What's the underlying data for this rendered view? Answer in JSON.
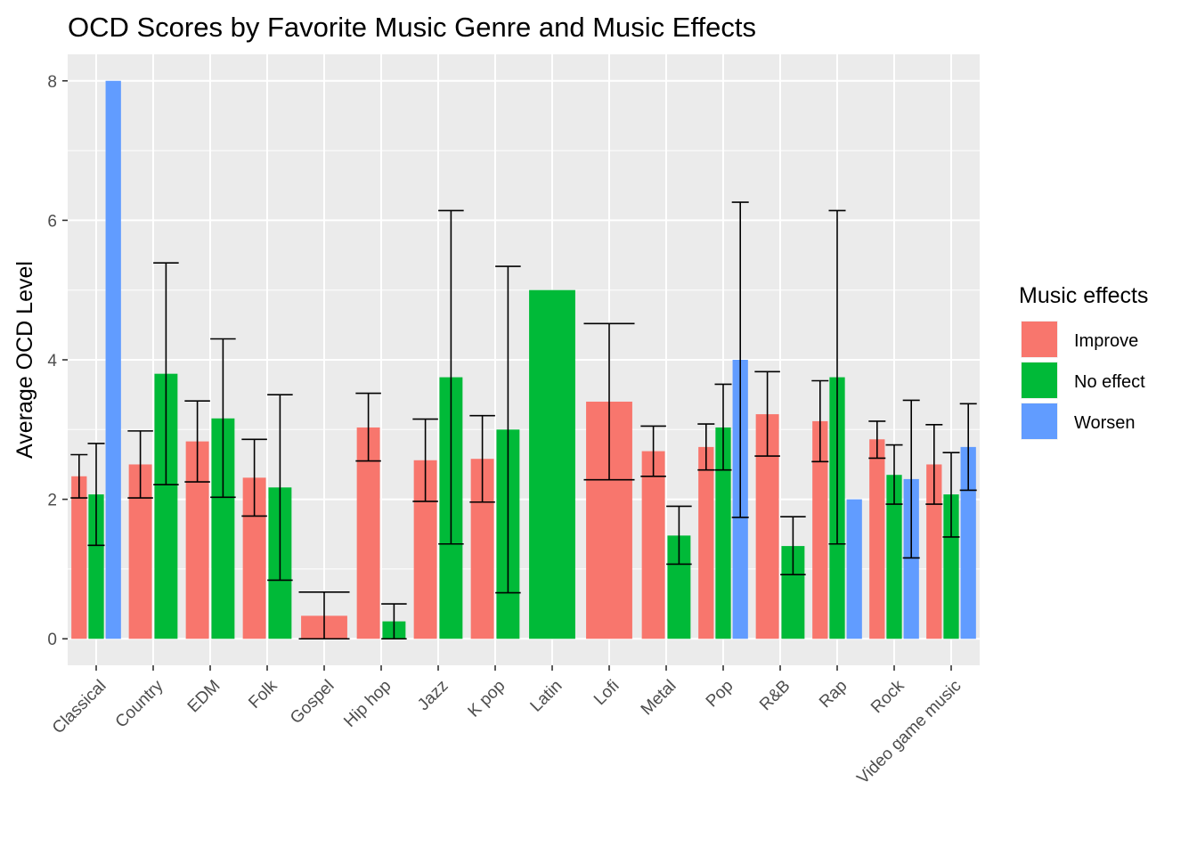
{
  "chart_data": {
    "type": "bar",
    "title": "OCD Scores by Favorite Music Genre and Music Effects",
    "xlabel": "",
    "ylabel": "Average OCD Level",
    "ylim": [
      -0.38,
      8.38
    ],
    "yticks": [
      0,
      2,
      4,
      6,
      8
    ],
    "grid": true,
    "legend_position": "right",
    "legend_title": "Music effects",
    "categories": [
      "Classical",
      "Country",
      "EDM",
      "Folk",
      "Gospel",
      "Hip hop",
      "Jazz",
      "K pop",
      "Latin",
      "Lofi",
      "Metal",
      "Pop",
      "R&B",
      "Rap",
      "Rock",
      "Video game music"
    ],
    "series": [
      {
        "name": "Improve",
        "color": "#F8766D",
        "values": [
          2.33,
          2.5,
          2.83,
          2.31,
          0.33,
          3.03,
          2.56,
          2.58,
          null,
          3.4,
          2.69,
          2.75,
          3.22,
          3.12,
          2.86,
          2.5
        ],
        "error_low": [
          2.02,
          2.02,
          2.25,
          1.76,
          0.0,
          2.55,
          1.97,
          1.96,
          null,
          2.28,
          2.33,
          2.42,
          2.62,
          2.54,
          2.59,
          1.93
        ],
        "error_high": [
          2.64,
          2.98,
          3.41,
          2.86,
          0.67,
          3.52,
          3.15,
          3.2,
          null,
          4.52,
          3.05,
          3.08,
          3.83,
          3.7,
          3.12,
          3.07
        ]
      },
      {
        "name": "No effect",
        "color": "#00BA38",
        "values": [
          2.07,
          3.8,
          3.16,
          2.17,
          null,
          0.25,
          3.75,
          3.0,
          5.0,
          null,
          1.48,
          3.03,
          1.33,
          3.75,
          2.35,
          2.07
        ],
        "error_low": [
          1.34,
          2.21,
          2.03,
          0.84,
          null,
          0.0,
          1.36,
          0.66,
          null,
          null,
          1.07,
          2.42,
          0.92,
          1.36,
          1.93,
          1.46
        ],
        "error_high": [
          2.8,
          5.39,
          4.3,
          3.5,
          null,
          0.5,
          6.14,
          5.34,
          null,
          null,
          1.9,
          3.65,
          1.75,
          6.14,
          2.78,
          2.67
        ]
      },
      {
        "name": "Worsen",
        "color": "#619CFF",
        "values": [
          8.0,
          null,
          null,
          null,
          null,
          null,
          null,
          null,
          null,
          null,
          null,
          4.0,
          null,
          2.0,
          2.29,
          2.75
        ],
        "error_low": [
          null,
          null,
          null,
          null,
          null,
          null,
          null,
          null,
          null,
          null,
          null,
          1.74,
          null,
          null,
          1.16,
          2.13
        ],
        "error_high": [
          null,
          null,
          null,
          null,
          null,
          null,
          null,
          null,
          null,
          null,
          null,
          6.26,
          null,
          null,
          3.42,
          3.37
        ]
      }
    ]
  }
}
